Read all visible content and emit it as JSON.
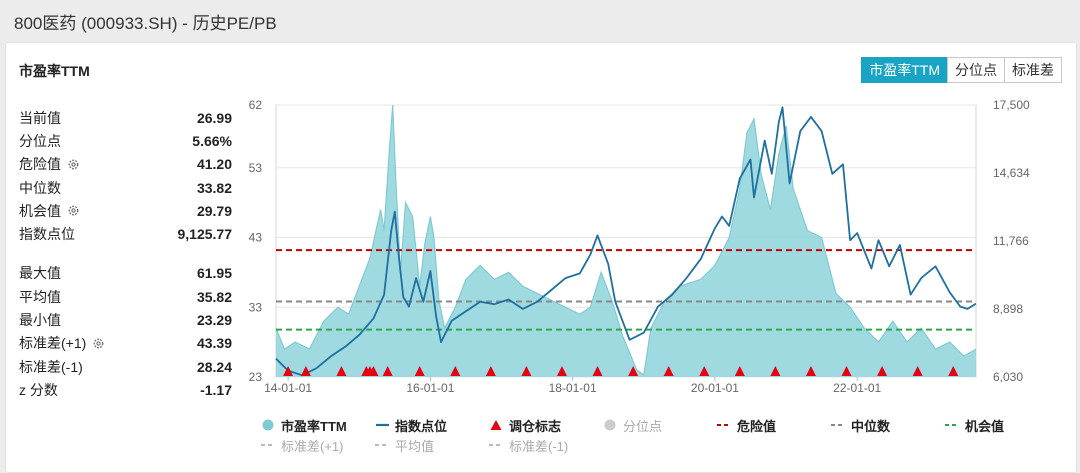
{
  "header": {
    "title": "800医药 (000933.SH) - 历史PE/PB"
  },
  "card": {
    "title": "市盈率TTM"
  },
  "tabs": [
    {
      "label": "市盈率TTM",
      "active": true
    },
    {
      "label": "分位点",
      "active": false
    },
    {
      "label": "标准差",
      "active": false
    }
  ],
  "stats": {
    "current": {
      "label": "当前值",
      "value": "26.99"
    },
    "percentile": {
      "label": "分位点",
      "value": "5.66%"
    },
    "danger": {
      "label": "危险值",
      "value": "41.20"
    },
    "median": {
      "label": "中位数",
      "value": "33.82"
    },
    "opportunity": {
      "label": "机会值",
      "value": "29.79"
    },
    "index_points": {
      "label": "指数点位",
      "value": "9,125.77"
    },
    "max": {
      "label": "最大值",
      "value": "61.95"
    },
    "mean": {
      "label": "平均值",
      "value": "35.82"
    },
    "min": {
      "label": "最小值",
      "value": "23.29"
    },
    "std_plus": {
      "label": "标准差(+1)",
      "value": "43.39"
    },
    "std_minus": {
      "label": "标准差(-1)",
      "value": "28.24"
    },
    "zscore": {
      "label": "z 分数",
      "value": "-1.17"
    }
  },
  "legend": {
    "row1": [
      "市盈率TTM",
      "指数点位",
      "调仓标志",
      "分位点",
      "危险值",
      "中位数",
      "机会值"
    ],
    "row2": [
      "标准差(+1)",
      "平均值",
      "标准差(-1)"
    ]
  },
  "colors": {
    "pe_area": "#8fd3dc",
    "pe_line": "#7fcad4",
    "index_line": "#1f6fa0",
    "rebalance": "#e60012",
    "danger": "#c00000",
    "median": "#888888",
    "opportunity": "#2aa84a",
    "accent": "#19a3c4"
  },
  "chart_data": {
    "type": "area",
    "left_axis": {
      "ticks": [
        23,
        33,
        43,
        53,
        62
      ],
      "range": [
        23,
        62
      ]
    },
    "right_axis": {
      "ticks": [
        "6,030",
        "8,898",
        "11,766",
        "14,634",
        "17,500"
      ],
      "range": [
        6030,
        17500
      ]
    },
    "x_ticks": [
      "14-01-01",
      "16-01-01",
      "18-01-01",
      "20-01-01",
      "22-01-01"
    ],
    "x_range": [
      2013.83,
      2023.67
    ],
    "reference_lines": {
      "danger": 41.2,
      "median": 33.82,
      "opportunity": 29.79
    },
    "series": [
      {
        "name": "市盈率TTM",
        "axis": "left",
        "points": [
          [
            2013.83,
            30
          ],
          [
            2013.95,
            27
          ],
          [
            2014.1,
            28
          ],
          [
            2014.3,
            27
          ],
          [
            2014.5,
            31
          ],
          [
            2014.7,
            33
          ],
          [
            2014.85,
            32
          ],
          [
            2015.0,
            36
          ],
          [
            2015.15,
            40
          ],
          [
            2015.3,
            47
          ],
          [
            2015.35,
            44
          ],
          [
            2015.42,
            55
          ],
          [
            2015.47,
            62
          ],
          [
            2015.52,
            50
          ],
          [
            2015.58,
            38
          ],
          [
            2015.65,
            48
          ],
          [
            2015.75,
            46
          ],
          [
            2015.85,
            36
          ],
          [
            2015.92,
            42
          ],
          [
            2016.0,
            46
          ],
          [
            2016.05,
            43
          ],
          [
            2016.12,
            34
          ],
          [
            2016.2,
            30
          ],
          [
            2016.35,
            33
          ],
          [
            2016.5,
            37
          ],
          [
            2016.7,
            39
          ],
          [
            2016.9,
            37
          ],
          [
            2017.1,
            38
          ],
          [
            2017.3,
            36
          ],
          [
            2017.5,
            35
          ],
          [
            2017.7,
            34
          ],
          [
            2017.9,
            33
          ],
          [
            2018.1,
            32
          ],
          [
            2018.25,
            33
          ],
          [
            2018.4,
            38
          ],
          [
            2018.55,
            34
          ],
          [
            2018.7,
            29
          ],
          [
            2018.9,
            24
          ],
          [
            2019.0,
            23.3
          ],
          [
            2019.1,
            30
          ],
          [
            2019.3,
            34
          ],
          [
            2019.5,
            36
          ],
          [
            2019.8,
            37
          ],
          [
            2020.0,
            39
          ],
          [
            2020.2,
            43
          ],
          [
            2020.35,
            50
          ],
          [
            2020.45,
            58
          ],
          [
            2020.55,
            60
          ],
          [
            2020.65,
            52
          ],
          [
            2020.78,
            47
          ],
          [
            2020.9,
            55
          ],
          [
            2021.0,
            59
          ],
          [
            2021.1,
            50
          ],
          [
            2021.3,
            44
          ],
          [
            2021.5,
            43
          ],
          [
            2021.7,
            35
          ],
          [
            2021.9,
            33
          ],
          [
            2022.1,
            30
          ],
          [
            2022.3,
            28
          ],
          [
            2022.5,
            31
          ],
          [
            2022.7,
            28
          ],
          [
            2022.9,
            30
          ],
          [
            2023.1,
            27
          ],
          [
            2023.3,
            28
          ],
          [
            2023.5,
            26
          ],
          [
            2023.67,
            27
          ]
        ]
      },
      {
        "name": "指数点位",
        "axis": "right",
        "points": [
          [
            2013.83,
            6800
          ],
          [
            2014.0,
            6300
          ],
          [
            2014.2,
            6100
          ],
          [
            2014.4,
            6400
          ],
          [
            2014.6,
            6900
          ],
          [
            2014.8,
            7300
          ],
          [
            2015.0,
            7800
          ],
          [
            2015.2,
            8500
          ],
          [
            2015.35,
            9500
          ],
          [
            2015.45,
            12200
          ],
          [
            2015.5,
            13000
          ],
          [
            2015.56,
            11000
          ],
          [
            2015.62,
            9400
          ],
          [
            2015.7,
            9000
          ],
          [
            2015.8,
            10200
          ],
          [
            2015.9,
            9200
          ],
          [
            2016.0,
            10500
          ],
          [
            2016.08,
            8600
          ],
          [
            2016.15,
            7500
          ],
          [
            2016.3,
            8400
          ],
          [
            2016.5,
            8800
          ],
          [
            2016.7,
            9200
          ],
          [
            2016.9,
            9100
          ],
          [
            2017.1,
            9300
          ],
          [
            2017.3,
            8900
          ],
          [
            2017.5,
            9200
          ],
          [
            2017.7,
            9700
          ],
          [
            2017.9,
            10200
          ],
          [
            2018.1,
            10400
          ],
          [
            2018.25,
            11200
          ],
          [
            2018.35,
            12000
          ],
          [
            2018.5,
            10800
          ],
          [
            2018.6,
            9200
          ],
          [
            2018.8,
            7600
          ],
          [
            2019.0,
            7900
          ],
          [
            2019.2,
            9000
          ],
          [
            2019.4,
            9500
          ],
          [
            2019.6,
            10200
          ],
          [
            2019.8,
            11000
          ],
          [
            2020.0,
            12300
          ],
          [
            2020.1,
            12800
          ],
          [
            2020.2,
            12400
          ],
          [
            2020.35,
            14400
          ],
          [
            2020.5,
            15200
          ],
          [
            2020.55,
            13600
          ],
          [
            2020.7,
            16000
          ],
          [
            2020.8,
            14600
          ],
          [
            2020.9,
            16800
          ],
          [
            2020.95,
            17400
          ],
          [
            2021.05,
            14200
          ],
          [
            2021.2,
            16400
          ],
          [
            2021.35,
            17000
          ],
          [
            2021.5,
            16400
          ],
          [
            2021.65,
            14600
          ],
          [
            2021.8,
            15000
          ],
          [
            2021.9,
            11800
          ],
          [
            2022.0,
            12100
          ],
          [
            2022.2,
            10600
          ],
          [
            2022.3,
            11800
          ],
          [
            2022.45,
            10700
          ],
          [
            2022.6,
            11600
          ],
          [
            2022.75,
            9500
          ],
          [
            2022.9,
            10200
          ],
          [
            2023.1,
            10700
          ],
          [
            2023.3,
            9600
          ],
          [
            2023.45,
            9000
          ],
          [
            2023.55,
            8900
          ],
          [
            2023.67,
            9126
          ]
        ]
      }
    ],
    "rebalance_markers": [
      2014.0,
      2014.25,
      2014.75,
      2015.1,
      2015.15,
      2015.2,
      2015.4,
      2015.85,
      2016.35,
      2016.85,
      2017.35,
      2017.85,
      2018.35,
      2018.85,
      2019.35,
      2019.85,
      2020.35,
      2020.85,
      2021.35,
      2021.85,
      2022.35,
      2022.85,
      2023.35
    ]
  }
}
